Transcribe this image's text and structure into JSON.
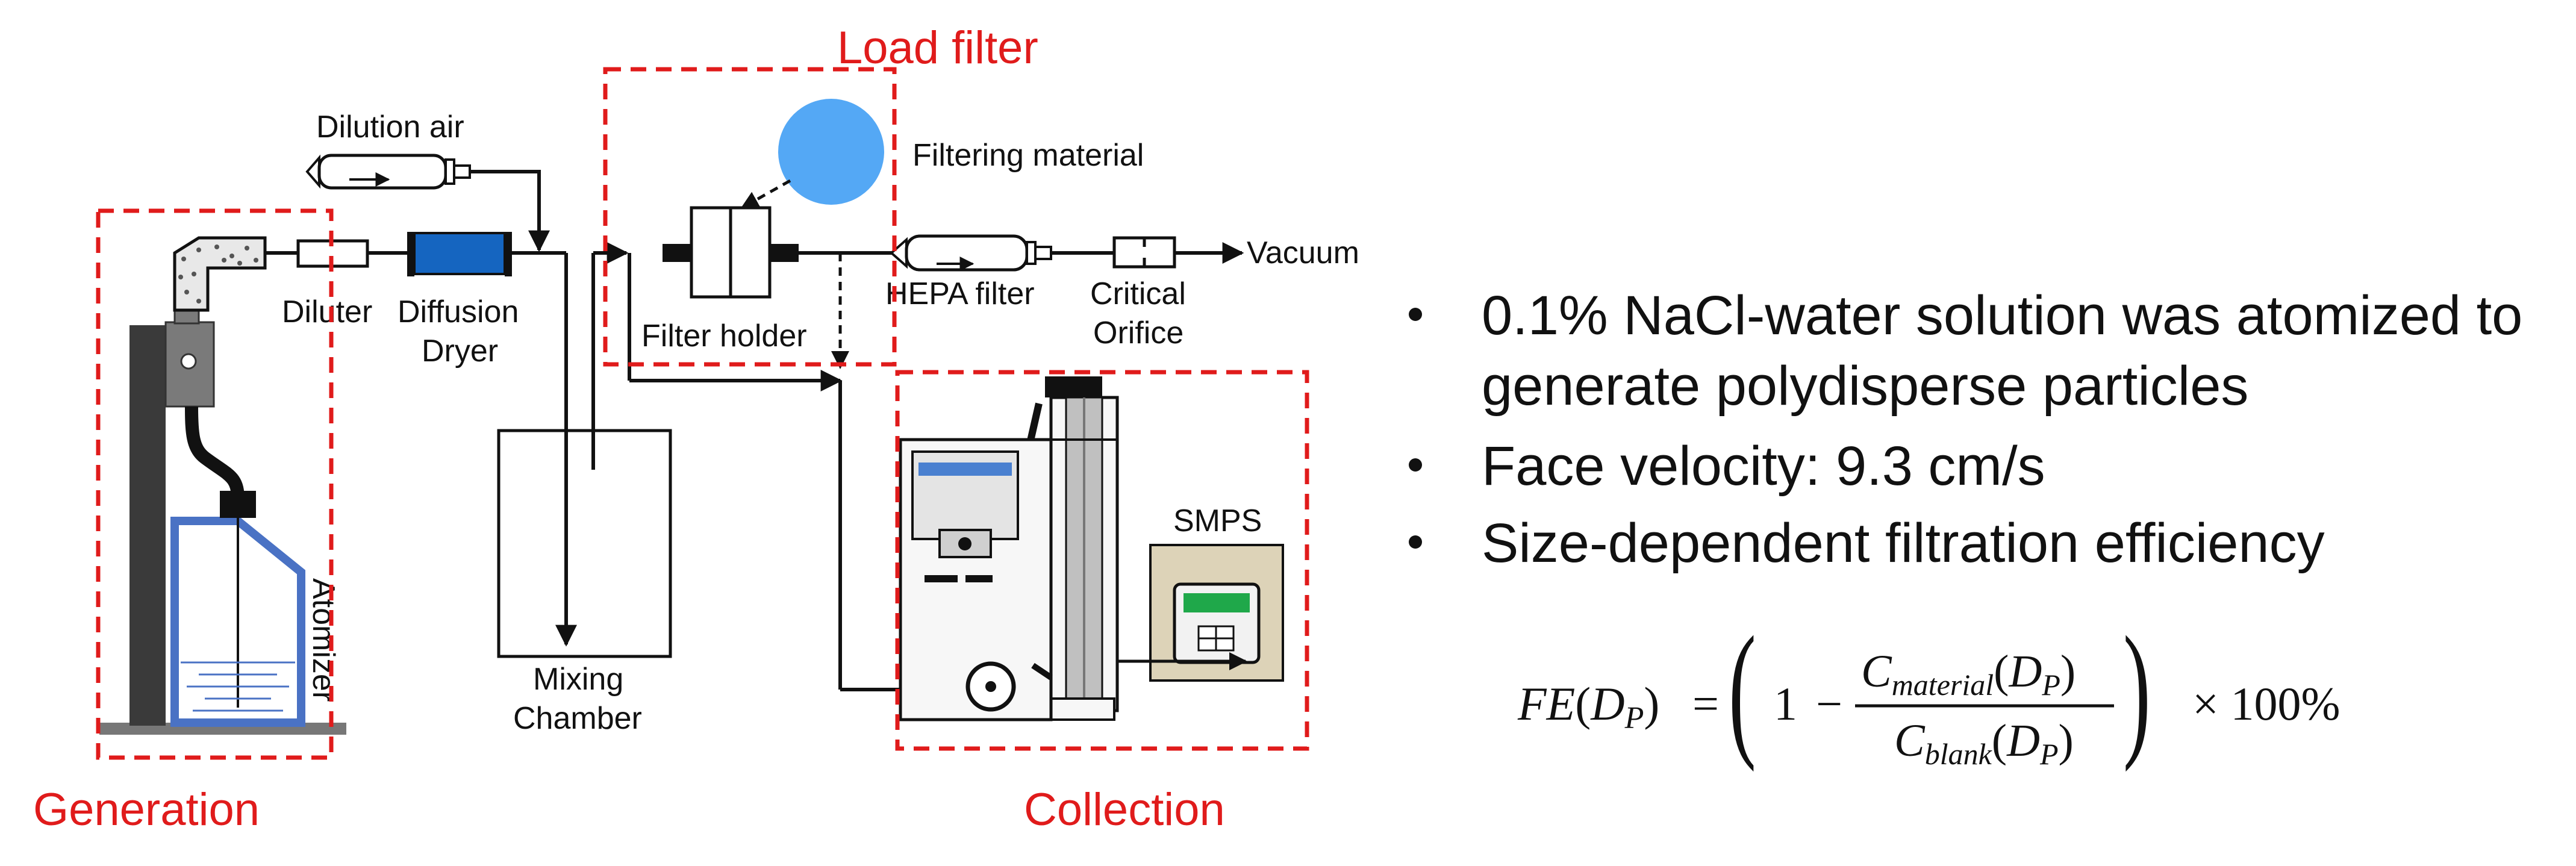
{
  "colors": {
    "accent_red": "#e01b1b",
    "dryer_blue": "#1565c0",
    "material_blue": "#54a8f5",
    "bottle_blue": "#4a72c4",
    "screen_green": "#1fa84a",
    "text": "#111111"
  },
  "labels": {
    "dilution_air": "Dilution air",
    "filtering_material": "Filtering material",
    "vacuum": "Vacuum",
    "diluter": "Diluter",
    "diffusion": "Diffusion",
    "dryer": "Dryer",
    "filter_holder": "Filter holder",
    "hepa_filter": "HEPA filter",
    "critical": "Critical",
    "orifice": "Orifice",
    "smps": "SMPS",
    "atomizer": "Atomizer",
    "mixing": "Mixing",
    "chamber": "Chamber"
  },
  "sections": {
    "load_filter": "Load filter",
    "generation": "Generation",
    "collection": "Collection"
  },
  "bullets": [
    {
      "line1": "0.1% NaCl-water solution was atomized to",
      "line2": "generate polydisperse particles"
    },
    {
      "line1": "Face velocity: 9.3 cm/s"
    },
    {
      "line1": "Size-dependent filtration efficiency"
    }
  ],
  "formula": {
    "lhs": "FE",
    "arg": "D",
    "sub_p": "P",
    "equals": "=",
    "one": "1",
    "minus": "−",
    "numerator_symbol": "C",
    "numerator_sub": "material",
    "denominator_symbol": "C",
    "denominator_sub": "blank",
    "multiply": "× 100%"
  }
}
